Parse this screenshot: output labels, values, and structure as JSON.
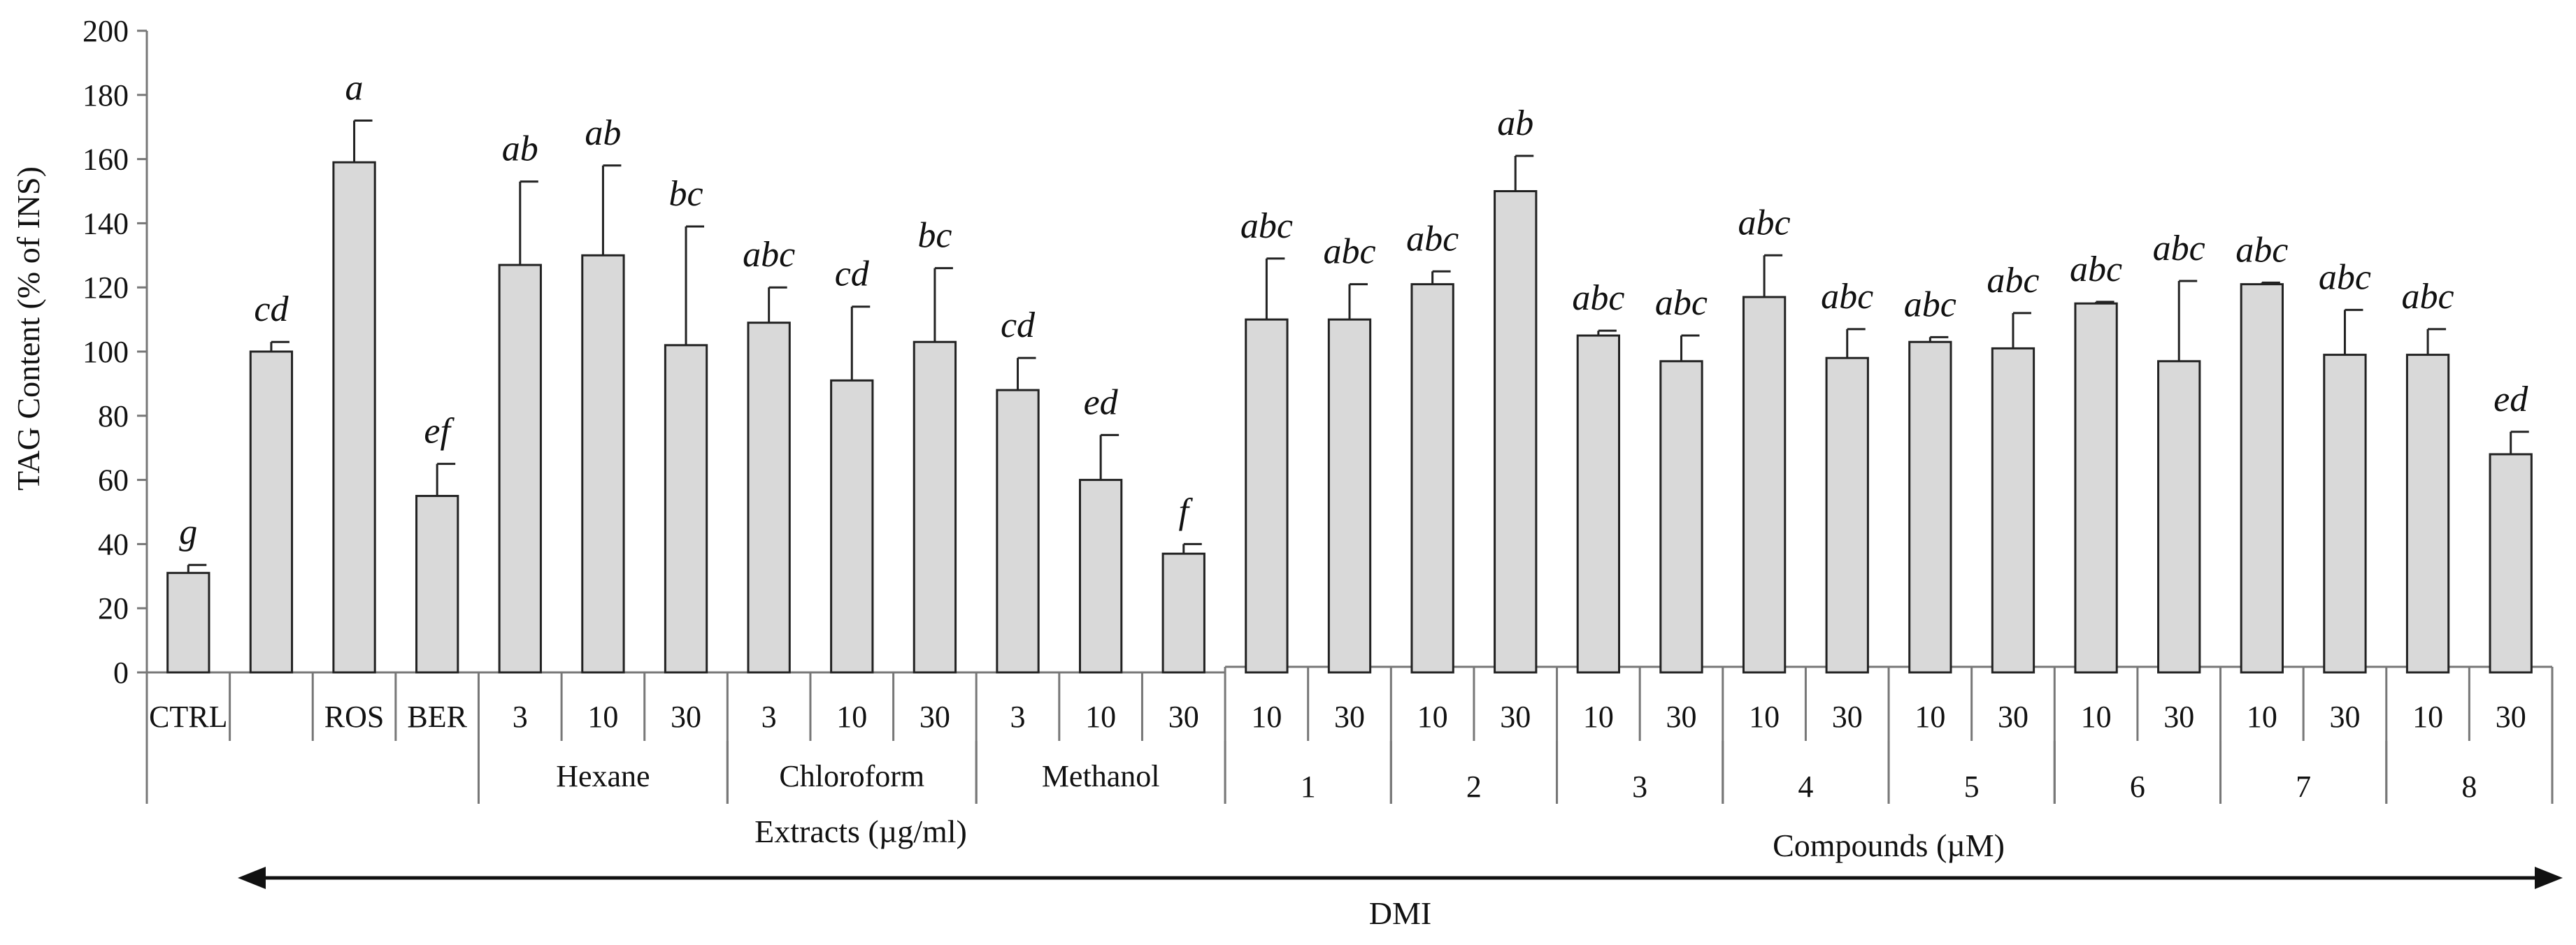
{
  "chart_data": {
    "type": "bar",
    "ylabel": "TAG Content (% of INS)",
    "ylim": [
      0,
      200
    ],
    "yticks": [
      0,
      20,
      40,
      60,
      80,
      100,
      120,
      140,
      160,
      180,
      200
    ],
    "bar_color": "#d9d9d9",
    "bars": [
      {
        "cat": "CTRL",
        "value": 31,
        "err": 2.5,
        "label": "g"
      },
      {
        "cat": "",
        "value": 100,
        "err": 3,
        "label": "cd"
      },
      {
        "cat": "ROS",
        "value": 159,
        "err": 13,
        "label": "a"
      },
      {
        "cat": "BER",
        "value": 55,
        "err": 10,
        "label": "ef"
      },
      {
        "cat": "3",
        "value": 127,
        "err": 26,
        "label": "ab"
      },
      {
        "cat": "10",
        "value": 130,
        "err": 28,
        "label": "ab"
      },
      {
        "cat": "30",
        "value": 102,
        "err": 37,
        "label": "bc"
      },
      {
        "cat": "3",
        "value": 109,
        "err": 11,
        "label": "abc"
      },
      {
        "cat": "10",
        "value": 91,
        "err": 23,
        "label": "cd"
      },
      {
        "cat": "30",
        "value": 103,
        "err": 23,
        "label": "bc"
      },
      {
        "cat": "3",
        "value": 88,
        "err": 10,
        "label": "cd"
      },
      {
        "cat": "10",
        "value": 60,
        "err": 14,
        "label": "ed"
      },
      {
        "cat": "30",
        "value": 37,
        "err": 3,
        "label": "f"
      },
      {
        "cat": "10",
        "value": 110,
        "err": 19,
        "label": "abc"
      },
      {
        "cat": "30",
        "value": 110,
        "err": 11,
        "label": "abc"
      },
      {
        "cat": "10",
        "value": 121,
        "err": 4,
        "label": "abc"
      },
      {
        "cat": "30",
        "value": 150,
        "err": 11,
        "label": "ab"
      },
      {
        "cat": "10",
        "value": 105,
        "err": 1.5,
        "label": "abc"
      },
      {
        "cat": "30",
        "value": 97,
        "err": 8,
        "label": "abc"
      },
      {
        "cat": "10",
        "value": 117,
        "err": 13,
        "label": "abc"
      },
      {
        "cat": "30",
        "value": 98,
        "err": 9,
        "label": "abc"
      },
      {
        "cat": "10",
        "value": 103,
        "err": 1.5,
        "label": "abc"
      },
      {
        "cat": "30",
        "value": 101,
        "err": 11,
        "label": "abc"
      },
      {
        "cat": "10",
        "value": 115,
        "err": 0.5,
        "label": "abc"
      },
      {
        "cat": "30",
        "value": 97,
        "err": 25,
        "label": "abc"
      },
      {
        "cat": "10",
        "value": 121,
        "err": 0.5,
        "label": "abc"
      },
      {
        "cat": "30",
        "value": 99,
        "err": 14,
        "label": "abc"
      },
      {
        "cat": "10",
        "value": 99,
        "err": 8,
        "label": "abc"
      },
      {
        "cat": "30",
        "value": 68,
        "err": 7,
        "label": "ed"
      }
    ],
    "subgroups": [
      {
        "name": "Hexane",
        "start": 4,
        "end": 6
      },
      {
        "name": "Chloroform",
        "start": 7,
        "end": 9
      },
      {
        "name": "Methanol",
        "start": 10,
        "end": 12
      },
      {
        "name": "1",
        "start": 13,
        "end": 14
      },
      {
        "name": "2",
        "start": 15,
        "end": 16
      },
      {
        "name": "3",
        "start": 17,
        "end": 18
      },
      {
        "name": "4",
        "start": 19,
        "end": 20
      },
      {
        "name": "5",
        "start": 21,
        "end": 22
      },
      {
        "name": "6",
        "start": 23,
        "end": 24
      },
      {
        "name": "7",
        "start": 25,
        "end": 26
      },
      {
        "name": "8",
        "start": 27,
        "end": 28
      }
    ],
    "groups": [
      {
        "name": "Extracts (µg/ml)",
        "start": 0,
        "end": 12
      },
      {
        "name": "Compounds (µM)",
        "start": 13,
        "end": 28
      }
    ],
    "arrow_label": "DMI"
  }
}
